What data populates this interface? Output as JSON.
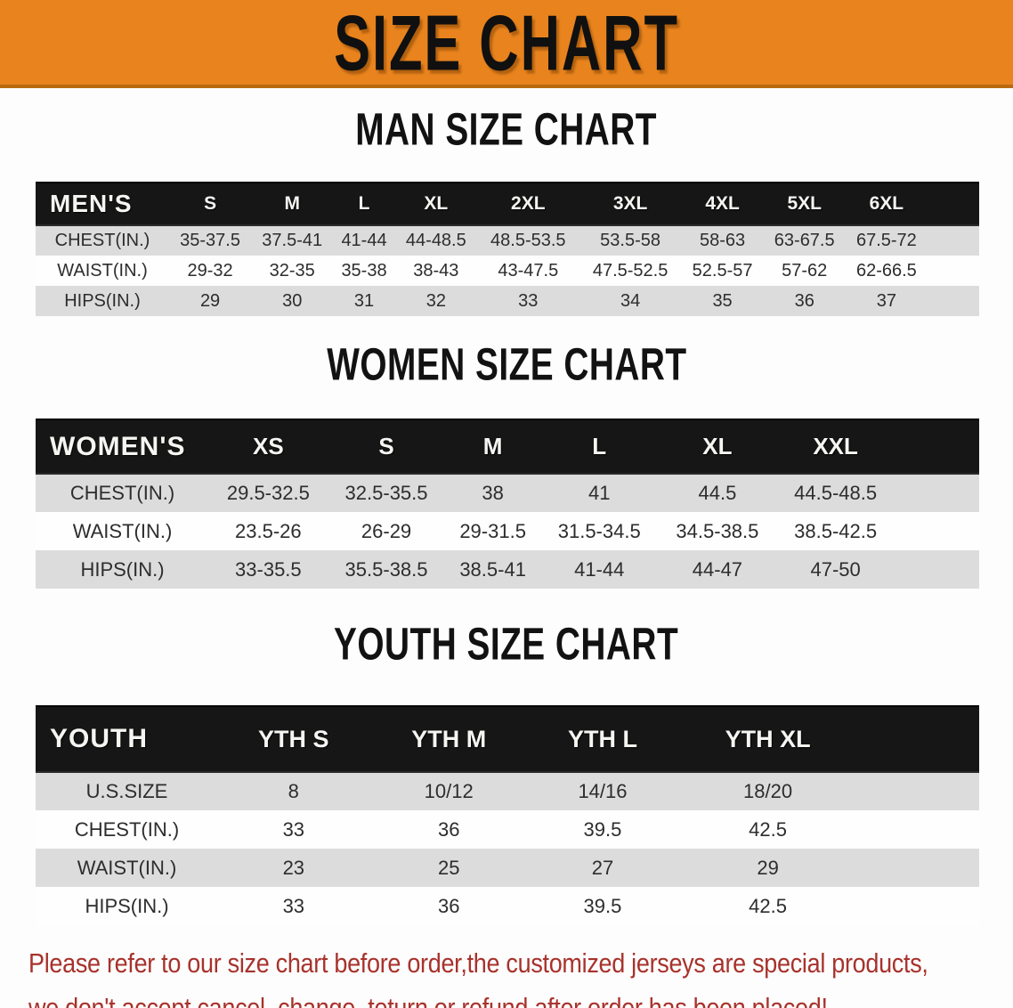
{
  "banner": {
    "title": "SIZE CHART"
  },
  "sections": [
    {
      "heading": "MAN SIZE CHART",
      "table": {
        "key": "men",
        "corner_label": "MEN'S",
        "columns": [
          "S",
          "M",
          "L",
          "XL",
          "2XL",
          "3XL",
          "4XL",
          "5XL",
          "6XL"
        ],
        "rows": [
          {
            "label": "CHEST(IN.)",
            "values": [
              "35-37.5",
              "37.5-41",
              "41-44",
              "44-48.5",
              "48.5-53.5",
              "53.5-58",
              "58-63",
              "63-67.5",
              "67.5-72"
            ]
          },
          {
            "label": "WAIST(IN.)",
            "values": [
              "29-32",
              "32-35",
              "35-38",
              "38-43",
              "43-47.5",
              "47.5-52.5",
              "52.5-57",
              "57-62",
              "62-66.5"
            ]
          },
          {
            "label": "HIPS(IN.)",
            "values": [
              "29",
              "30",
              "31",
              "32",
              "33",
              "34",
              "35",
              "36",
              "37"
            ]
          }
        ]
      }
    },
    {
      "heading": "WOMEN SIZE CHART",
      "table": {
        "key": "women",
        "corner_label": "WOMEN'S",
        "columns": [
          "XS",
          "S",
          "M",
          "L",
          "XL",
          "XXL"
        ],
        "rows": [
          {
            "label": "CHEST(IN.)",
            "values": [
              "29.5-32.5",
              "32.5-35.5",
              "38",
              "41",
              "44.5",
              "44.5-48.5"
            ]
          },
          {
            "label": "WAIST(IN.)",
            "values": [
              "23.5-26",
              "26-29",
              "29-31.5",
              "31.5-34.5",
              "34.5-38.5",
              "38.5-42.5"
            ]
          },
          {
            "label": "HIPS(IN.)",
            "values": [
              "33-35.5",
              "35.5-38.5",
              "38.5-41",
              "41-44",
              "44-47",
              "47-50"
            ]
          }
        ]
      }
    },
    {
      "heading": "YOUTH SIZE CHART",
      "table": {
        "key": "youth",
        "corner_label": "YOUTH",
        "columns": [
          "YTH S",
          "YTH M",
          "YTH L",
          "YTH XL"
        ],
        "rows": [
          {
            "label": "U.S.SIZE",
            "values": [
              "8",
              "10/12",
              "14/16",
              "18/20"
            ]
          },
          {
            "label": "CHEST(IN.)",
            "values": [
              "33",
              "36",
              "39.5",
              "42.5"
            ]
          },
          {
            "label": "WAIST(IN.)",
            "values": [
              "23",
              "25",
              "27",
              "29"
            ]
          },
          {
            "label": "HIPS(IN.)",
            "values": [
              "33",
              "36",
              "39.5",
              "42.5"
            ]
          }
        ]
      }
    }
  ],
  "footer": {
    "line1": "Please refer to our size chart before order,the customized jerseys are special products,",
    "line2": "we don't accept cancel, change, teturn or refund after order has been placed!"
  },
  "colors": {
    "banner_bg": "#E8831D",
    "banner_edge": "#B96A10",
    "band_bg": "#161616",
    "stripe_gray": "#DCDCDC",
    "note_red": "#A8322C"
  }
}
